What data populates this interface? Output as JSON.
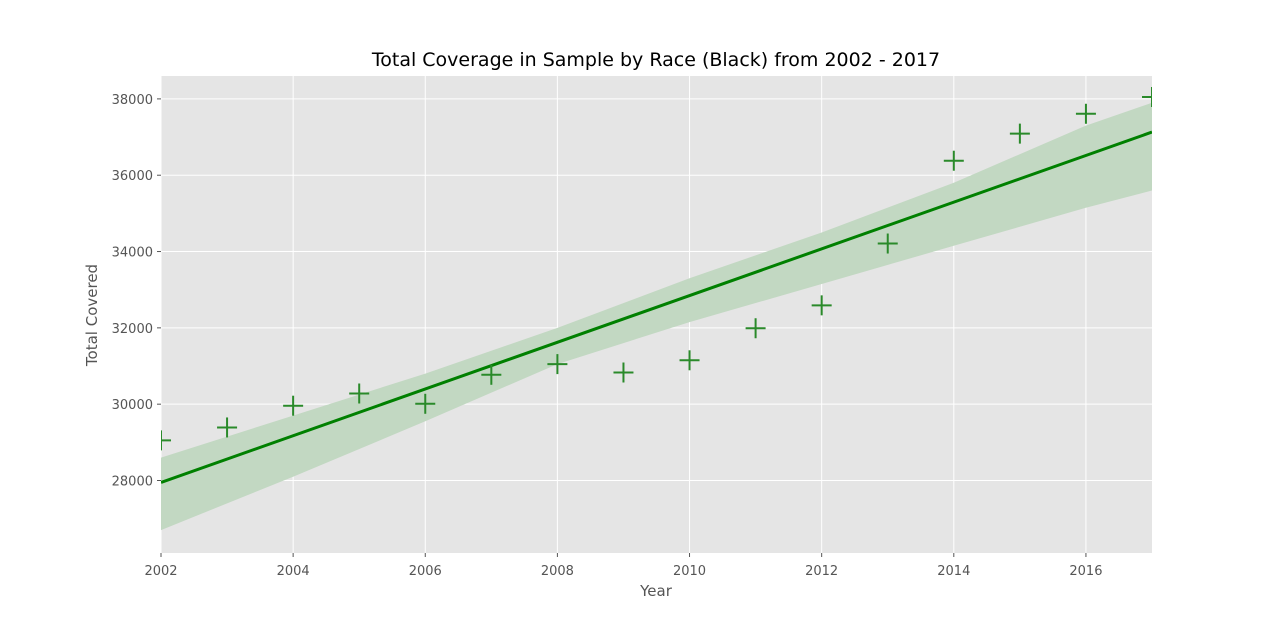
{
  "colors": {
    "plot_background": "#e5e5e5",
    "grid": "#ffffff",
    "series": "#008000",
    "marker": "#2a8a2a",
    "confidence_band": "#c2d8c2",
    "text": "#555555"
  },
  "chart_data": {
    "type": "scatter",
    "title": "Total Coverage in Sample by Race (Black) from 2002 - 2017",
    "xlabel": "Year",
    "ylabel": "Total Covered",
    "xlim": [
      2002,
      2017
    ],
    "ylim": [
      26100,
      38600
    ],
    "grid": true,
    "x_ticks": [
      "2002",
      "2004",
      "2006",
      "2008",
      "2010",
      "2012",
      "2014",
      "2016"
    ],
    "y_ticks": [
      "28000",
      "30000",
      "32000",
      "34000",
      "36000",
      "38000"
    ],
    "marker": "+",
    "x": [
      2002,
      2003,
      2004,
      2005,
      2006,
      2007,
      2008,
      2009,
      2010,
      2011,
      2012,
      2013,
      2014,
      2015,
      2016,
      2017
    ],
    "y": [
      29050,
      29390,
      29960,
      30280,
      30010,
      30770,
      31050,
      30830,
      31150,
      31990,
      32590,
      34210,
      36380,
      37090,
      37610,
      38050
    ],
    "regression_line": {
      "x": [
        2002,
        2017
      ],
      "y": [
        27950,
        37130
      ]
    },
    "confidence_band": {
      "x": [
        2002,
        2004,
        2006,
        2008,
        2010,
        2012,
        2014,
        2016,
        2017
      ],
      "upper": [
        28600,
        29700,
        30800,
        32000,
        33300,
        34500,
        35800,
        37300,
        37900
      ],
      "lower": [
        26700,
        28100,
        29550,
        31050,
        32150,
        33150,
        34150,
        35150,
        35600
      ]
    }
  }
}
